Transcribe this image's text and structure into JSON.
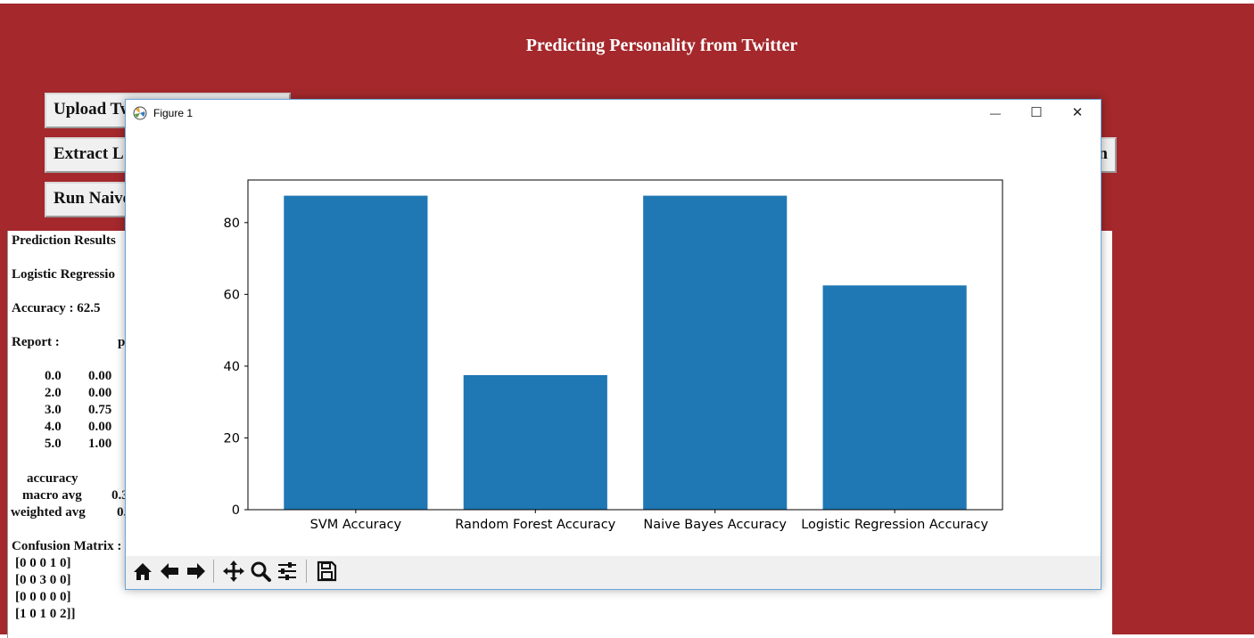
{
  "app": {
    "title": "Predicting Personality from Twitter",
    "buttons": {
      "upload": "Upload Tw",
      "extract": "Extract L",
      "run_naive": "Run Naive",
      "right_partial": "n"
    }
  },
  "output": {
    "heading": "Prediction Results",
    "model": "Logistic Regressio",
    "accuracy": "Accuracy : 62.5",
    "report_label": "Report :",
    "report_partial": "p",
    "report_rows": [
      {
        "label": "0.0",
        "value": "0.00"
      },
      {
        "label": "2.0",
        "value": "0.00"
      },
      {
        "label": "3.0",
        "value": "0.75"
      },
      {
        "label": "4.0",
        "value": "0.00"
      },
      {
        "label": "5.0",
        "value": "1.00"
      }
    ],
    "accuracy_row": "accuracy",
    "macro_avg": "macro avg",
    "macro_partial": "0.3",
    "weighted_avg": "weighted avg",
    "weighted_partial": "0.",
    "confusion_label": "Confusion Matrix :",
    "confusion_rows": [
      "[0 0 0 1 0]",
      "[0 0 3 0 0]",
      "[0 0 0 0 0]",
      "[1 0 1 0 2]]"
    ]
  },
  "figure_window": {
    "title": "Figure 1",
    "controls": {
      "minimize": "—",
      "maximize": "☐",
      "close": "✕"
    },
    "toolbar_icons": [
      "home-icon",
      "back-arrow-icon",
      "forward-arrow-icon",
      "pan-icon",
      "zoom-icon",
      "configure-subplots-icon",
      "save-icon"
    ]
  },
  "chart_data": {
    "type": "bar",
    "categories": [
      "SVM Accuracy",
      "Random Forest Accuracy",
      "Naive Bayes Accuracy",
      "Logistic Regression Accuracy"
    ],
    "values": [
      87.5,
      37.5,
      87.5,
      62.5
    ],
    "ylim": [
      0,
      91.875
    ],
    "yticks": [
      0,
      20,
      40,
      60,
      80
    ],
    "bar_color": "#1f77b4",
    "grid": false
  }
}
